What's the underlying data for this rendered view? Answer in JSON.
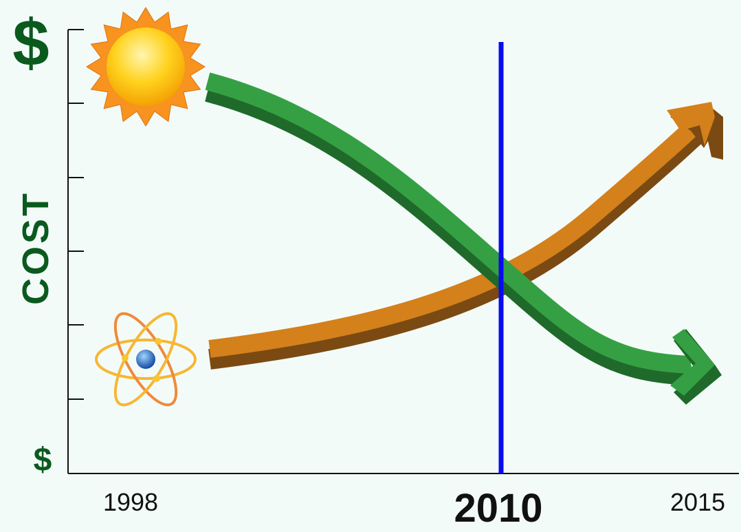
{
  "y_axis": {
    "top_label": "$",
    "title": "COST",
    "bottom_label": "$"
  },
  "x_axis": {
    "labels": [
      "1998",
      "2010",
      "2015"
    ]
  }
}
